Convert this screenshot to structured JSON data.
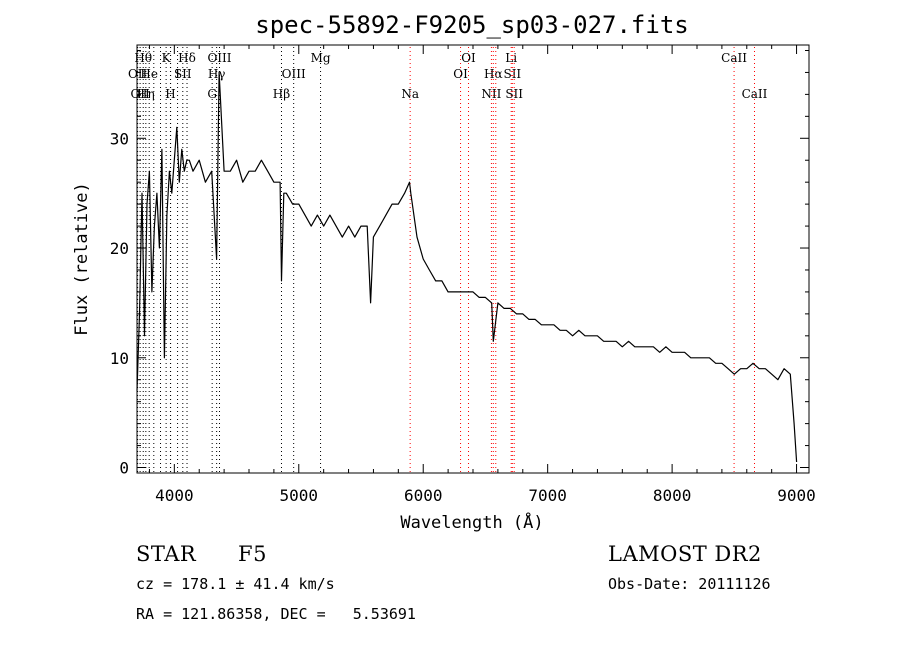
{
  "chart_data": {
    "type": "line",
    "title": "spec-55892-F9205_sp03-027.fits",
    "xlabel": "Wavelength (Å)",
    "ylabel": "Flux (relative)",
    "xlim": [
      3700,
      9100
    ],
    "ylim": [
      -0.5,
      38.5
    ],
    "x_ticks": [
      4000,
      5000,
      6000,
      7000,
      8000,
      9000
    ],
    "y_ticks": [
      0,
      10,
      20,
      30
    ],
    "grid": false,
    "line_color": "#000000",
    "marker_color": "#ff0000",
    "series": [
      {
        "x": [
          3700,
          3720,
          3740,
          3760,
          3780,
          3800,
          3820,
          3840,
          3860,
          3880,
          3900,
          3920,
          3940,
          3960,
          3980,
          4000,
          4020,
          4040,
          4060,
          4080,
          4100,
          4120,
          4150,
          4200,
          4250,
          4300,
          4340,
          4360,
          4400,
          4450,
          4500,
          4550,
          4600,
          4650,
          4700,
          4750,
          4800,
          4850,
          4861,
          4880,
          4900,
          4950,
          5000,
          5050,
          5100,
          5150,
          5200,
          5250,
          5300,
          5350,
          5400,
          5450,
          5500,
          5550,
          5577,
          5600,
          5650,
          5700,
          5750,
          5800,
          5850,
          5890,
          5900,
          5950,
          6000,
          6050,
          6100,
          6150,
          6200,
          6250,
          6300,
          6350,
          6400,
          6450,
          6500,
          6550,
          6563,
          6600,
          6650,
          6700,
          6750,
          6800,
          6850,
          6900,
          6950,
          7000,
          7050,
          7100,
          7150,
          7200,
          7250,
          7300,
          7350,
          7400,
          7450,
          7500,
          7550,
          7600,
          7650,
          7700,
          7750,
          7800,
          7850,
          7900,
          7950,
          8000,
          8050,
          8100,
          8150,
          8200,
          8250,
          8300,
          8350,
          8400,
          8450,
          8500,
          8550,
          8600,
          8650,
          8700,
          8750,
          8800,
          8850,
          8900,
          8950,
          8980,
          9000
        ],
        "y": [
          7,
          14,
          25,
          12,
          24,
          27,
          16,
          22,
          25,
          20,
          29,
          10,
          23,
          27,
          25,
          28,
          31,
          26,
          29,
          27,
          28,
          28,
          27,
          28,
          26,
          27,
          19,
          36,
          27,
          27,
          28,
          26,
          27,
          27,
          28,
          27,
          26,
          26,
          17,
          25,
          25,
          24,
          24,
          23,
          22,
          23,
          22,
          23,
          22,
          21,
          22,
          21,
          22,
          22,
          15,
          21,
          22,
          23,
          24,
          24,
          25,
          26,
          25,
          21,
          19,
          18,
          17,
          17,
          16,
          16,
          16,
          16,
          16,
          15.5,
          15.5,
          15,
          11.5,
          15,
          14.5,
          14.5,
          14,
          14,
          13.5,
          13.5,
          13,
          13,
          13,
          12.5,
          12.5,
          12,
          12.5,
          12,
          12,
          12,
          11.5,
          11.5,
          11.5,
          11,
          11.5,
          11,
          11,
          11,
          11,
          10.5,
          11,
          10.5,
          10.5,
          10.5,
          10,
          10,
          10,
          10,
          9.5,
          9.5,
          9,
          8.5,
          9,
          9,
          9.5,
          9,
          9,
          8.5,
          8,
          9,
          8.5,
          4,
          0.5
        ]
      }
    ],
    "line_markers": [
      {
        "wave": 3705,
        "label": "OII",
        "row": 2
      },
      {
        "wave": 3725,
        "label": "OII",
        "row": 3
      },
      {
        "wave": 3750,
        "label": "Hθ",
        "row": 1
      },
      {
        "wave": 3771,
        "label": "Hη",
        "row": 3
      },
      {
        "wave": 3798,
        "label": "He",
        "row": 2
      },
      {
        "wave": 3835,
        "label": "",
        "row": 0
      },
      {
        "wave": 3889,
        "label": "",
        "row": 0
      },
      {
        "wave": 3934,
        "label": "K",
        "row": 1
      },
      {
        "wave": 3969,
        "label": "H",
        "row": 3
      },
      {
        "wave": 3970,
        "label": "",
        "row": 0
      },
      {
        "wave": 4026,
        "label": "I",
        "row": 2
      },
      {
        "wave": 4068,
        "label": "SII",
        "row": 2
      },
      {
        "wave": 4102,
        "label": "Hδ",
        "row": 1
      },
      {
        "wave": 4304,
        "label": "G",
        "row": 3
      },
      {
        "wave": 4340,
        "label": "Hγ",
        "row": 2
      },
      {
        "wave": 4363,
        "label": "OIII",
        "row": 1
      },
      {
        "wave": 4861,
        "label": "Hβ",
        "row": 3
      },
      {
        "wave": 4959,
        "label": "OIII",
        "row": 2
      },
      {
        "wave": 5175,
        "label": "Mg",
        "row": 1
      },
      {
        "wave": 5895,
        "label": "Na",
        "row": 3
      },
      {
        "wave": 6300,
        "label": "OI",
        "row": 2
      },
      {
        "wave": 6364,
        "label": "OI",
        "row": 1
      },
      {
        "wave": 6548,
        "label": "NII",
        "row": 3
      },
      {
        "wave": 6563,
        "label": "Hα",
        "row": 2
      },
      {
        "wave": 6583,
        "label": "",
        "row": 0
      },
      {
        "wave": 6707,
        "label": "Li",
        "row": 1
      },
      {
        "wave": 6716,
        "label": "SII",
        "row": 2
      },
      {
        "wave": 6731,
        "label": "SII",
        "row": 3
      },
      {
        "wave": 8498,
        "label": "CaII",
        "row": 1
      },
      {
        "wave": 8662,
        "label": "CaII",
        "row": 3
      }
    ]
  },
  "info": {
    "object_class": "STAR",
    "subclass": "F5",
    "survey": "LAMOST DR2",
    "cz": "cz = 178.1 ± 41.4 km/s",
    "obs_date": "Obs-Date: 20111126",
    "coords": "RA = 121.86358, DEC =   5.53691"
  }
}
